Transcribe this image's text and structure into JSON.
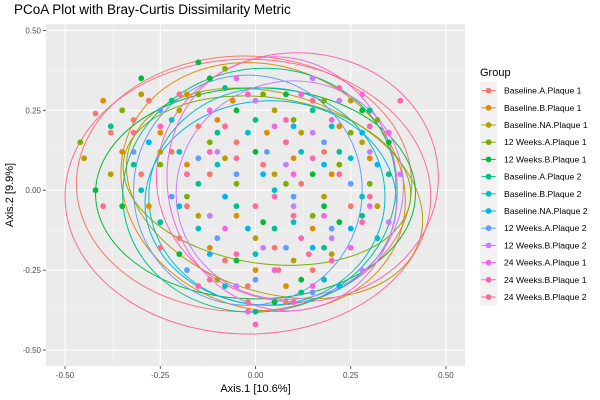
{
  "chart_data": {
    "type": "scatter",
    "title": "PCoA Plot with Bray-Curtis Dissimilarity Metric",
    "xlabel": "Axis.1   [10.6%]",
    "ylabel": "Axis.2   [9.9%]",
    "xlim": [
      -0.55,
      0.55
    ],
    "ylim": [
      -0.55,
      0.52
    ],
    "xticks": [
      -0.5,
      -0.25,
      0,
      0.25,
      0.5
    ],
    "xtick_labels": [
      "-0.50",
      "-0.25",
      "0.00",
      "0.25",
      "0.50"
    ],
    "yticks": [
      -0.5,
      -0.25,
      0,
      0.25,
      0.5
    ],
    "ytick_labels": [
      "-0.50",
      "-0.25",
      "0.00",
      "0.25",
      "0.50"
    ],
    "grid": true,
    "legend": {
      "title": "Group",
      "position": "right",
      "entries": [
        {
          "name": "Baseline.A.Plaque 1",
          "color": "#F8766D"
        },
        {
          "name": "Baseline.B.Plaque 1",
          "color": "#DE8C00"
        },
        {
          "name": "Baseline.NA.Plaque 1",
          "color": "#B79F00"
        },
        {
          "name": "12 Weeks.A.Plaque 1",
          "color": "#7CAE00"
        },
        {
          "name": "12 Weeks.B.Plaque 1",
          "color": "#00BA38"
        },
        {
          "name": "Baseline.A.Plaque 2",
          "color": "#00C08B"
        },
        {
          "name": "Baseline.B.Plaque 2",
          "color": "#00BFC4"
        },
        {
          "name": "Baseline.NA.Plaque 2",
          "color": "#00B4F0"
        },
        {
          "name": "12 Weeks.A.Plaque 2",
          "color": "#619CFF"
        },
        {
          "name": "12 Weeks.B.Plaque 2",
          "color": "#C77CFF"
        },
        {
          "name": "24 Weeks.A.Plaque 1",
          "color": "#F564E3"
        },
        {
          "name": "24 Weeks.B.Plaque 1",
          "color": "#FF64B0"
        },
        {
          "name": "24 Weeks.B.Plaque 2",
          "color": "#FF6C91"
        }
      ]
    },
    "ellipses": [
      {
        "group": 0,
        "cx": -0.03,
        "cy": 0.02,
        "rx": 0.44,
        "ry": 0.4,
        "angle": 0
      },
      {
        "group": 1,
        "cx": 0.02,
        "cy": 0.01,
        "rx": 0.38,
        "ry": 0.38,
        "angle": -20
      },
      {
        "group": 2,
        "cx": 0.05,
        "cy": -0.01,
        "rx": 0.4,
        "ry": 0.31,
        "angle": -18
      },
      {
        "group": 3,
        "cx": 0.03,
        "cy": 0.03,
        "rx": 0.38,
        "ry": 0.26,
        "angle": -8
      },
      {
        "group": 4,
        "cx": 0.0,
        "cy": -0.01,
        "rx": 0.42,
        "ry": 0.33,
        "angle": 0
      },
      {
        "group": 5,
        "cx": 0.01,
        "cy": 0.0,
        "rx": 0.36,
        "ry": 0.38,
        "angle": 10
      },
      {
        "group": 6,
        "cx": 0.03,
        "cy": -0.02,
        "rx": 0.31,
        "ry": 0.34,
        "angle": 0
      },
      {
        "group": 7,
        "cx": 0.04,
        "cy": -0.04,
        "rx": 0.33,
        "ry": 0.32,
        "angle": 0
      },
      {
        "group": 8,
        "cx": -0.02,
        "cy": 0.0,
        "rx": 0.3,
        "ry": 0.36,
        "angle": 0
      },
      {
        "group": 9,
        "cx": 0.09,
        "cy": 0.0,
        "rx": 0.3,
        "ry": 0.34,
        "angle": 20
      },
      {
        "group": 10,
        "cx": 0.07,
        "cy": 0.02,
        "rx": 0.3,
        "ry": 0.4,
        "angle": 15
      },
      {
        "group": 11,
        "cx": 0.11,
        "cy": 0.04,
        "rx": 0.37,
        "ry": 0.39,
        "angle": 0
      },
      {
        "group": 12,
        "cx": -0.02,
        "cy": -0.02,
        "rx": 0.48,
        "ry": 0.43,
        "angle": 0
      }
    ],
    "points": [
      [
        -0.42,
        0.24,
        0
      ],
      [
        -0.38,
        0.18,
        0
      ],
      [
        -0.32,
        0.22,
        0
      ],
      [
        -0.28,
        0.28,
        0
      ],
      [
        -0.22,
        0.12,
        0
      ],
      [
        -0.18,
        -0.05,
        0
      ],
      [
        -0.12,
        0.05,
        0
      ],
      [
        -0.05,
        0.15,
        0
      ],
      [
        0.02,
        0.08,
        0
      ],
      [
        -0.08,
        -0.22,
        0
      ],
      [
        -0.02,
        -0.3,
        0
      ],
      [
        0.05,
        -0.18,
        0
      ],
      [
        0.12,
        0.02,
        0
      ],
      [
        0.18,
        0.12,
        0
      ],
      [
        0.25,
        -0.05,
        0
      ],
      [
        -0.15,
        0.2,
        0
      ],
      [
        -0.3,
        0.05,
        0
      ],
      [
        0.08,
        -0.35,
        0
      ],
      [
        -0.2,
        -0.15,
        0
      ],
      [
        0.15,
        -0.25,
        0
      ],
      [
        -0.4,
        0.28,
        1
      ],
      [
        -0.35,
        0.12,
        1
      ],
      [
        -0.25,
        0.18,
        1
      ],
      [
        -0.18,
        0.3,
        1
      ],
      [
        -0.1,
        0.22,
        1
      ],
      [
        -0.05,
        -0.08,
        1
      ],
      [
        0.03,
        0.18,
        1
      ],
      [
        0.1,
        0.1,
        1
      ],
      [
        0.2,
        0.05,
        1
      ],
      [
        -0.12,
        -0.18,
        1
      ],
      [
        0.0,
        -0.25,
        1
      ],
      [
        0.08,
        -0.3,
        1
      ],
      [
        0.15,
        -0.12,
        1
      ],
      [
        -0.28,
        -0.05,
        1
      ],
      [
        0.22,
        0.2,
        1
      ],
      [
        -0.06,
        0.28,
        1
      ],
      [
        0.3,
        0.1,
        1
      ],
      [
        -0.18,
        0.08,
        1
      ],
      [
        -0.45,
        0.1,
        2
      ],
      [
        -0.38,
        0.05,
        2
      ],
      [
        -0.3,
        0.3,
        2
      ],
      [
        -0.2,
        0.25,
        2
      ],
      [
        -0.08,
        0.1,
        2
      ],
      [
        0.05,
        0.25,
        2
      ],
      [
        0.12,
        0.18,
        2
      ],
      [
        0.18,
        -0.02,
        2
      ],
      [
        0.28,
        0.15,
        2
      ],
      [
        -0.15,
        -0.08,
        2
      ],
      [
        0.0,
        -0.15,
        2
      ],
      [
        0.1,
        -0.22,
        2
      ],
      [
        0.2,
        -0.2,
        2
      ],
      [
        -0.25,
        0.12,
        2
      ],
      [
        0.32,
        -0.05,
        2
      ],
      [
        0.05,
        0.05,
        2
      ],
      [
        -0.1,
        -0.28,
        2
      ],
      [
        0.25,
        0.28,
        2
      ],
      [
        -0.46,
        0.15,
        3
      ],
      [
        -0.35,
        0.25,
        3
      ],
      [
        -0.25,
        0.08,
        3
      ],
      [
        -0.15,
        0.3,
        3
      ],
      [
        -0.08,
        0.38,
        3
      ],
      [
        0.02,
        0.3,
        3
      ],
      [
        0.1,
        0.22,
        3
      ],
      [
        0.18,
        0.28,
        3
      ],
      [
        0.25,
        0.18,
        3
      ],
      [
        0.32,
        0.22,
        3
      ],
      [
        -0.18,
        -0.02,
        3
      ],
      [
        0.08,
        0.02,
        3
      ],
      [
        0.15,
        -0.08,
        3
      ],
      [
        0.22,
        0.08,
        3
      ],
      [
        -0.05,
        0.02,
        3
      ],
      [
        0.3,
        0.02,
        3
      ],
      [
        -0.12,
        0.15,
        3
      ],
      [
        -0.42,
        0.0,
        4
      ],
      [
        -0.35,
        -0.05,
        4
      ],
      [
        -0.28,
        0.15,
        4
      ],
      [
        -0.12,
        0.35,
        4
      ],
      [
        -0.05,
        0.25,
        4
      ],
      [
        0.0,
        0.12,
        4
      ],
      [
        0.08,
        0.3,
        4
      ],
      [
        0.15,
        0.05,
        4
      ],
      [
        0.22,
        -0.1,
        4
      ],
      [
        0.28,
        0.25,
        4
      ],
      [
        -0.2,
        -0.2,
        4
      ],
      [
        -0.05,
        -0.22,
        4
      ],
      [
        0.05,
        -0.35,
        4
      ],
      [
        0.12,
        -0.28,
        4
      ],
      [
        -0.15,
        0.4,
        4
      ],
      [
        0.35,
        0.15,
        4
      ],
      [
        -0.3,
        0.35,
        4
      ],
      [
        0.18,
        -0.05,
        4
      ],
      [
        0.02,
        -0.1,
        4
      ],
      [
        -0.38,
        0.2,
        5
      ],
      [
        -0.32,
        0.08,
        5
      ],
      [
        -0.22,
        0.28,
        5
      ],
      [
        -0.1,
        0.18,
        5
      ],
      [
        0.0,
        0.22,
        5
      ],
      [
        0.08,
        0.15,
        5
      ],
      [
        0.15,
        0.25,
        5
      ],
      [
        0.22,
        0.12,
        5
      ],
      [
        0.3,
        0.25,
        5
      ],
      [
        -0.15,
        0.02,
        5
      ],
      [
        -0.05,
        -0.05,
        5
      ],
      [
        0.05,
        -0.12,
        5
      ],
      [
        0.18,
        -0.18,
        5
      ],
      [
        0.28,
        -0.08,
        5
      ],
      [
        -0.25,
        -0.1,
        5
      ],
      [
        0.12,
        -0.32,
        5
      ],
      [
        0.0,
        -0.38,
        5
      ],
      [
        0.35,
        0.05,
        5
      ],
      [
        -0.08,
        0.32,
        5
      ],
      [
        -0.3,
        0.0,
        6
      ],
      [
        -0.2,
        0.12,
        6
      ],
      [
        -0.1,
        0.08,
        6
      ],
      [
        -0.02,
        0.18,
        6
      ],
      [
        0.05,
        0.0,
        6
      ],
      [
        0.12,
        0.12,
        6
      ],
      [
        0.2,
        0.2,
        6
      ],
      [
        0.28,
        -0.02,
        6
      ],
      [
        -0.15,
        -0.12,
        6
      ],
      [
        0.0,
        -0.2,
        6
      ],
      [
        0.1,
        -0.1,
        6
      ],
      [
        0.18,
        -0.28,
        6
      ],
      [
        -0.08,
        -0.3,
        6
      ],
      [
        0.25,
        0.1,
        6
      ],
      [
        0.32,
        -0.15,
        6
      ],
      [
        -0.22,
        0.22,
        6
      ],
      [
        -0.28,
        0.15,
        7
      ],
      [
        -0.18,
        0.05,
        7
      ],
      [
        -0.08,
        -0.02,
        7
      ],
      [
        0.02,
        0.05,
        7
      ],
      [
        0.1,
        0.2,
        7
      ],
      [
        0.18,
        0.08,
        7
      ],
      [
        0.25,
        -0.12,
        7
      ],
      [
        0.32,
        0.08,
        7
      ],
      [
        -0.12,
        -0.2,
        7
      ],
      [
        0.05,
        -0.25,
        7
      ],
      [
        0.15,
        -0.18,
        7
      ],
      [
        0.22,
        -0.3,
        7
      ],
      [
        -0.02,
        -0.12,
        7
      ],
      [
        0.28,
        0.18,
        7
      ],
      [
        -0.2,
        -0.05,
        7
      ],
      [
        -0.32,
        0.12,
        8
      ],
      [
        -0.22,
        -0.02,
        8
      ],
      [
        -0.15,
        0.1,
        8
      ],
      [
        -0.05,
        0.05,
        8
      ],
      [
        0.03,
        0.12,
        8
      ],
      [
        0.1,
        -0.02,
        8
      ],
      [
        0.18,
        0.15,
        8
      ],
      [
        0.25,
        0.02,
        8
      ],
      [
        -0.1,
        -0.15,
        8
      ],
      [
        0.0,
        -0.28,
        8
      ],
      [
        0.08,
        -0.18,
        8
      ],
      [
        0.15,
        -0.32,
        8
      ],
      [
        -0.18,
        -0.25,
        8
      ],
      [
        0.2,
        -0.12,
        8
      ],
      [
        -0.25,
        0.25,
        8
      ],
      [
        -0.1,
        0.12,
        9
      ],
      [
        0.0,
        0.28,
        9
      ],
      [
        0.08,
        0.08,
        9
      ],
      [
        0.15,
        0.18,
        9
      ],
      [
        0.22,
        0.28,
        9
      ],
      [
        0.3,
        0.12,
        9
      ],
      [
        0.38,
        0.05,
        9
      ],
      [
        0.1,
        -0.05,
        9
      ],
      [
        0.2,
        -0.15,
        9
      ],
      [
        0.28,
        -0.25,
        9
      ],
      [
        0.02,
        -0.18,
        9
      ],
      [
        -0.05,
        -0.3,
        9
      ],
      [
        0.35,
        -0.1,
        9
      ],
      [
        0.15,
        0.35,
        9
      ],
      [
        -0.12,
        -0.08,
        9
      ],
      [
        -0.12,
        0.25,
        10
      ],
      [
        -0.05,
        0.35,
        10
      ],
      [
        0.05,
        0.2,
        10
      ],
      [
        0.12,
        0.3,
        10
      ],
      [
        0.2,
        0.22,
        10
      ],
      [
        0.28,
        0.3,
        10
      ],
      [
        0.35,
        0.18,
        10
      ],
      [
        0.1,
        0.05,
        10
      ],
      [
        0.18,
        -0.08,
        10
      ],
      [
        0.25,
        -0.18,
        10
      ],
      [
        0.05,
        -0.25,
        10
      ],
      [
        -0.08,
        -0.12,
        10
      ],
      [
        0.3,
        -0.05,
        10
      ],
      [
        -0.02,
        -0.38,
        10
      ],
      [
        0.15,
        -0.3,
        10
      ],
      [
        -0.25,
        0.2,
        11
      ],
      [
        -0.12,
        0.12,
        11
      ],
      [
        -0.02,
        0.3,
        11
      ],
      [
        0.08,
        0.22,
        11
      ],
      [
        0.15,
        0.1,
        11
      ],
      [
        0.22,
        0.32,
        11
      ],
      [
        0.3,
        0.2,
        11
      ],
      [
        0.38,
        0.28,
        11
      ],
      [
        0.05,
        -0.02,
        11
      ],
      [
        0.12,
        -0.15,
        11
      ],
      [
        0.2,
        -0.22,
        11
      ],
      [
        -0.05,
        -0.2,
        11
      ],
      [
        -0.15,
        -0.3,
        11
      ],
      [
        0.28,
        -0.1,
        11
      ],
      [
        0.0,
        -0.42,
        11
      ],
      [
        0.1,
        -0.35,
        11
      ],
      [
        -0.4,
        -0.05,
        12
      ],
      [
        -0.32,
        0.18,
        12
      ],
      [
        -0.25,
        -0.18,
        12
      ],
      [
        -0.18,
        0.05,
        12
      ],
      [
        -0.08,
        0.2,
        12
      ],
      [
        0.0,
        -0.05,
        12
      ],
      [
        0.08,
        0.15,
        12
      ],
      [
        0.15,
        0.28,
        12
      ],
      [
        0.22,
        0.05,
        12
      ],
      [
        -0.12,
        -0.28,
        12
      ],
      [
        -0.02,
        -0.35,
        12
      ],
      [
        0.06,
        -0.25,
        12
      ],
      [
        0.14,
        -0.2,
        12
      ],
      [
        -0.2,
        0.3,
        12
      ],
      [
        0.3,
        -0.02,
        12
      ],
      [
        -0.05,
        0.1,
        12
      ],
      [
        0.1,
        -0.08,
        12
      ]
    ]
  }
}
